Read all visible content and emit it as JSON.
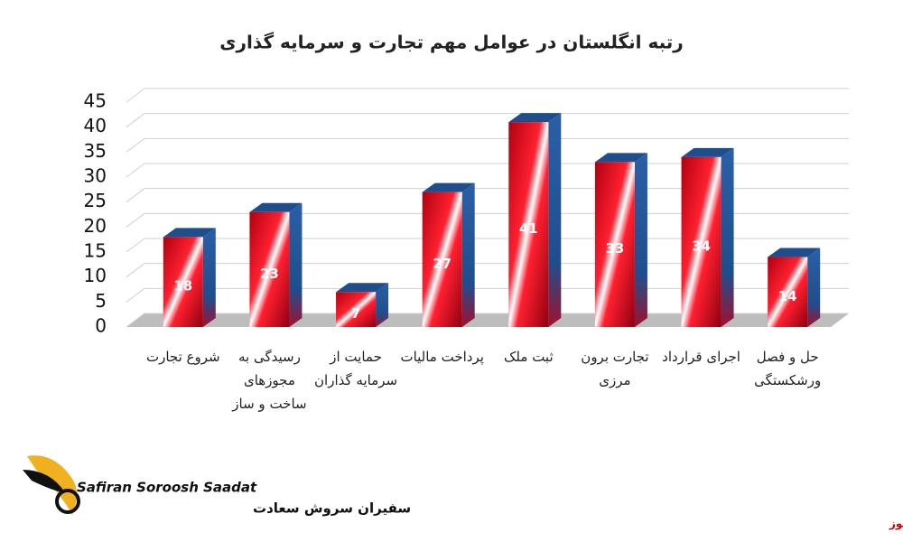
{
  "chart_data": {
    "type": "bar3d",
    "title": "رتبه انگلستان در عوامل مهم تجارت و سرمایه گذاری",
    "categories": [
      "شروع تجارت",
      "رسیدگی به مجوزهای ساخت و ساز",
      "حمایت از سرمایه گذاران",
      "پرداخت مالیات",
      "ثبت ملک",
      "تجارت برون مرزی",
      "اجرای قرارداد",
      "حل و فصل ورشکستگی"
    ],
    "values": [
      18,
      23,
      7,
      27,
      41,
      33,
      34,
      14
    ],
    "color": "#e01020",
    "side_color": "#1f4e8c",
    "ylim": [
      0,
      45
    ],
    "yticks": [
      0,
      5,
      10,
      15,
      20,
      25,
      30,
      35,
      40,
      45
    ],
    "grid": true
  },
  "logo": {
    "latin": "Safiran Soroosh Saadat",
    "persian": "سفیران سروش سعادت"
  },
  "source": "بورس نیوز"
}
